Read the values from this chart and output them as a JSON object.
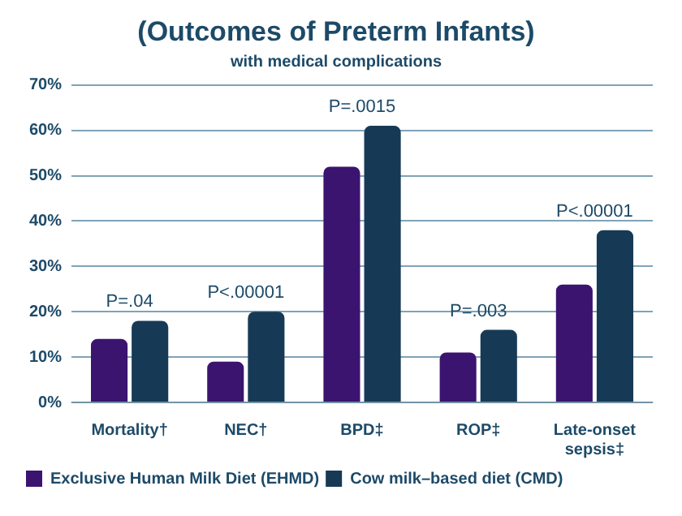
{
  "chart_data": {
    "type": "bar",
    "title": "(Outcomes of Preterm Infants)",
    "subtitle": "with medical complications",
    "categories": [
      "Mortality†",
      "NEC†",
      "BPD‡",
      "ROP‡",
      "Late-onset sepsis‡"
    ],
    "series": [
      {
        "name": "Exclusive Human Milk Diet (EHMD)",
        "color": "#3b1470",
        "values": [
          14,
          9,
          52,
          11,
          26
        ]
      },
      {
        "name": "Cow milk–based diet (CMD)",
        "color": "#163a55",
        "values": [
          18,
          20,
          61,
          16,
          38
        ]
      }
    ],
    "ylim": [
      0,
      70
    ],
    "yticks": [
      {
        "value": 0,
        "label": "0%"
      },
      {
        "value": 10,
        "label": "10%"
      },
      {
        "value": 20,
        "label": "20%"
      },
      {
        "value": 30,
        "label": "30%"
      },
      {
        "value": 40,
        "label": "40%"
      },
      {
        "value": 50,
        "label": "50%"
      },
      {
        "value": 60,
        "label": "60%"
      },
      {
        "value": 70,
        "label": "70%"
      }
    ],
    "grid": "y",
    "legend": "bottom",
    "annotations": [
      "P=.04",
      "P<.00001",
      "P=.0015",
      "P=.003",
      "P<.00001"
    ]
  }
}
